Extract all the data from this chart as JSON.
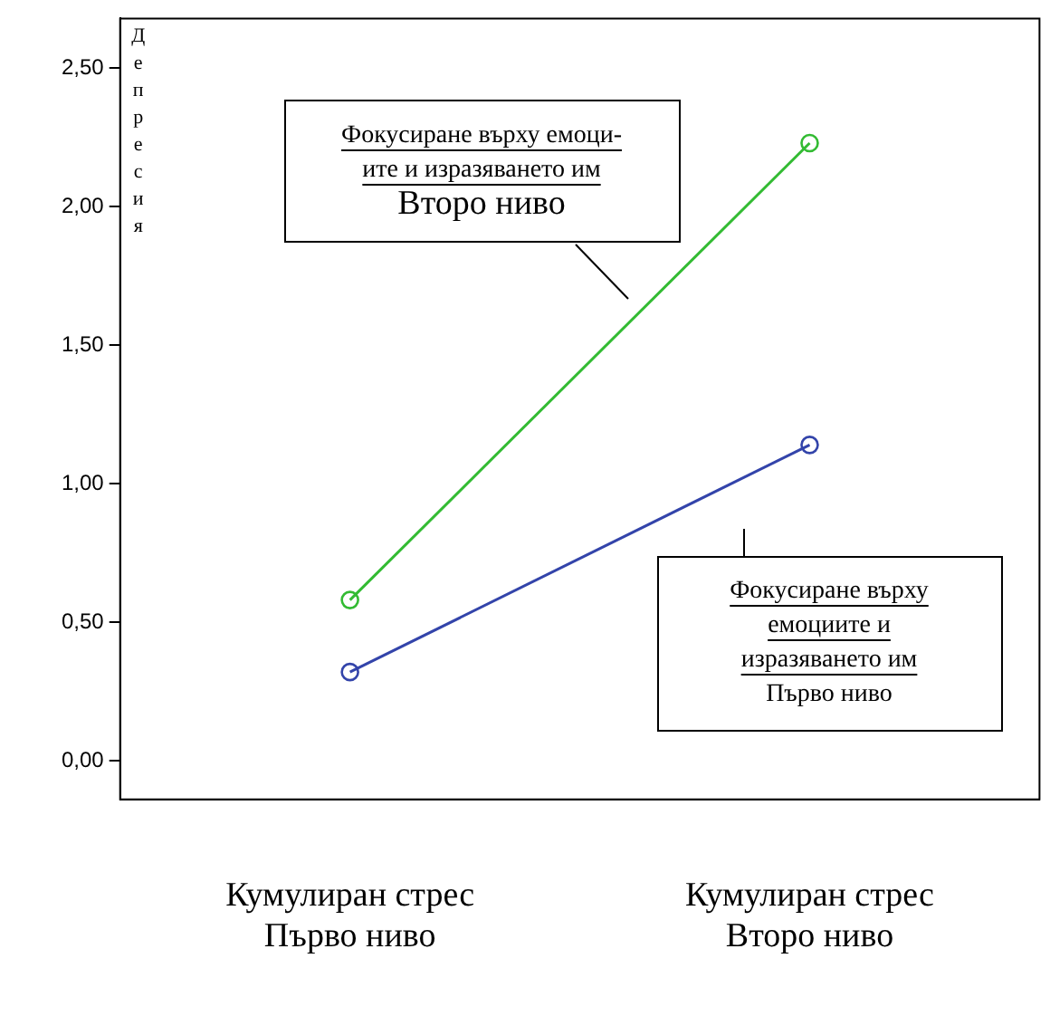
{
  "chart_data": {
    "type": "line",
    "ylabel": "Депресия",
    "categories": [
      "Кумулиран стрес\nПърво ниво",
      "Кумулиран стрес\nВторо ниво"
    ],
    "series": [
      {
        "name": "Фокусиране върху емоци-\nите и изразяването им\nВторо ниво",
        "color": "#33bb33",
        "values": [
          0.58,
          2.23
        ]
      },
      {
        "name": "Фокусиране върху\nемоциите и\nизразяването им\nПърво ниво",
        "color": "#3344aa",
        "values": [
          0.32,
          1.14
        ]
      }
    ],
    "ylim": [
      -0.14,
      2.68
    ],
    "yticks": [
      {
        "value": 0,
        "label": "0,00"
      },
      {
        "value": 0.5,
        "label": "0,50"
      },
      {
        "value": 1,
        "label": "1,00"
      },
      {
        "value": 1.5,
        "label": "1,50"
      },
      {
        "value": 2,
        "label": "2,00"
      },
      {
        "value": 2.5,
        "label": "2,50"
      }
    ],
    "grid": false,
    "marker": "circle",
    "line_style": "solid"
  }
}
